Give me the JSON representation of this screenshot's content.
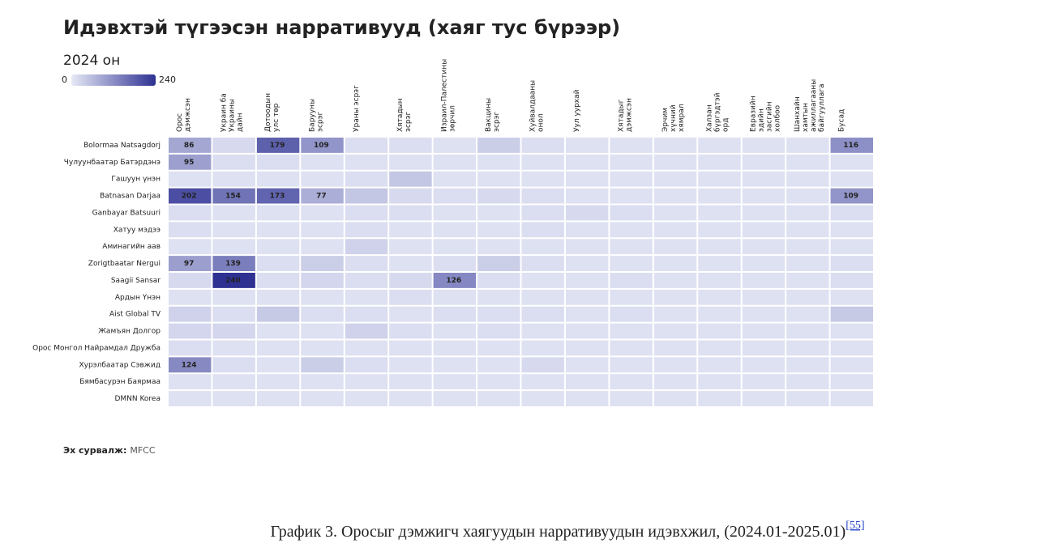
{
  "chart_data": {
    "type": "heatmap",
    "title": "Идэвхтэй түгээсэн нарративууд (хаяг тус бүрээр)",
    "subtitle": "2024 он",
    "colorbar": {
      "min": 0,
      "max": 240
    },
    "color_range": [
      "#e6e9f6",
      "#2e3192"
    ],
    "label_min": 70,
    "columns": [
      "Орос дэмжсэн",
      "Украин ба Украины дайн",
      "Дотоодын улс төр",
      "Барууны эсрэг",
      "Ураны эсрэг",
      "Хятадын эсрэг",
      "Израил-Палестины зөрчил",
      "Вакцины эсрэг",
      "Хуйвалдааны онол",
      "Уул уурхай",
      "Хятадыг дэмжсэн",
      "Эрчим хүчний хямрал",
      "Халзан бүргэдтэй орд",
      "Евразийн эдийн засгийн холбоо",
      "Шанхайн хамтын ажиллагааны байгууллага",
      "Бусад"
    ],
    "rows": [
      "Bolormaa Natsagdorj",
      "Чулуунбаатар Батэрдэнэ",
      "Гашуун үнэн",
      "Batnasan Darjaa",
      "Ganbayar Batsuuri",
      "Хатуу мэдээ",
      "Аминагийн аав",
      "Zorigtbaatar Nergui",
      "Saagii Sansar",
      "Ардын Үнэн",
      "Aist Global TV",
      "Жамъян Долгор",
      "Орос Монгол Найрамдал Дружба",
      "Хурэлбаатар Сэвжид",
      "Бямбасурэн Баярмаа",
      "DMNN Korea"
    ],
    "values": [
      [
        86,
        20,
        179,
        109,
        15,
        15,
        10,
        35,
        15,
        10,
        10,
        10,
        10,
        10,
        10,
        116
      ],
      [
        95,
        15,
        15,
        10,
        10,
        10,
        10,
        10,
        10,
        10,
        10,
        10,
        10,
        10,
        10,
        10
      ],
      [
        10,
        10,
        10,
        10,
        15,
        45,
        10,
        10,
        10,
        10,
        10,
        10,
        10,
        10,
        10,
        10
      ],
      [
        202,
        154,
        173,
        77,
        45,
        20,
        15,
        20,
        15,
        10,
        10,
        10,
        10,
        10,
        10,
        109
      ],
      [
        15,
        10,
        10,
        10,
        15,
        15,
        10,
        10,
        15,
        20,
        15,
        10,
        10,
        10,
        10,
        15
      ],
      [
        15,
        10,
        10,
        10,
        15,
        10,
        10,
        10,
        15,
        10,
        10,
        10,
        10,
        10,
        10,
        10
      ],
      [
        10,
        10,
        10,
        10,
        30,
        10,
        10,
        10,
        10,
        10,
        10,
        10,
        10,
        10,
        10,
        10
      ],
      [
        97,
        139,
        15,
        35,
        15,
        10,
        15,
        35,
        15,
        10,
        10,
        10,
        10,
        10,
        10,
        15
      ],
      [
        20,
        240,
        15,
        25,
        15,
        20,
        126,
        15,
        10,
        10,
        15,
        10,
        10,
        10,
        10,
        15
      ],
      [
        10,
        10,
        10,
        10,
        10,
        15,
        10,
        10,
        10,
        10,
        10,
        10,
        10,
        10,
        10,
        10
      ],
      [
        30,
        15,
        40,
        15,
        15,
        10,
        15,
        15,
        15,
        10,
        15,
        10,
        10,
        10,
        10,
        40
      ],
      [
        25,
        25,
        10,
        10,
        30,
        15,
        10,
        15,
        10,
        10,
        10,
        10,
        10,
        10,
        10,
        10
      ],
      [
        15,
        10,
        10,
        10,
        10,
        10,
        10,
        10,
        10,
        10,
        10,
        10,
        10,
        10,
        10,
        10
      ],
      [
        124,
        15,
        10,
        35,
        15,
        10,
        10,
        10,
        20,
        10,
        10,
        10,
        10,
        10,
        10,
        10
      ],
      [
        10,
        10,
        10,
        10,
        10,
        10,
        10,
        10,
        10,
        10,
        10,
        10,
        10,
        10,
        10,
        10
      ],
      [
        10,
        10,
        10,
        10,
        10,
        10,
        10,
        10,
        10,
        10,
        10,
        10,
        10,
        10,
        10,
        10
      ]
    ],
    "source": {
      "label": "Эх сурвалж:",
      "text": "MFCC"
    },
    "caption": {
      "text": "График 3. Оросыг дэмжигч хаягуудын нарративуудын идэвхжил, (2024.01-2025.01)",
      "ref": "[55]"
    }
  }
}
